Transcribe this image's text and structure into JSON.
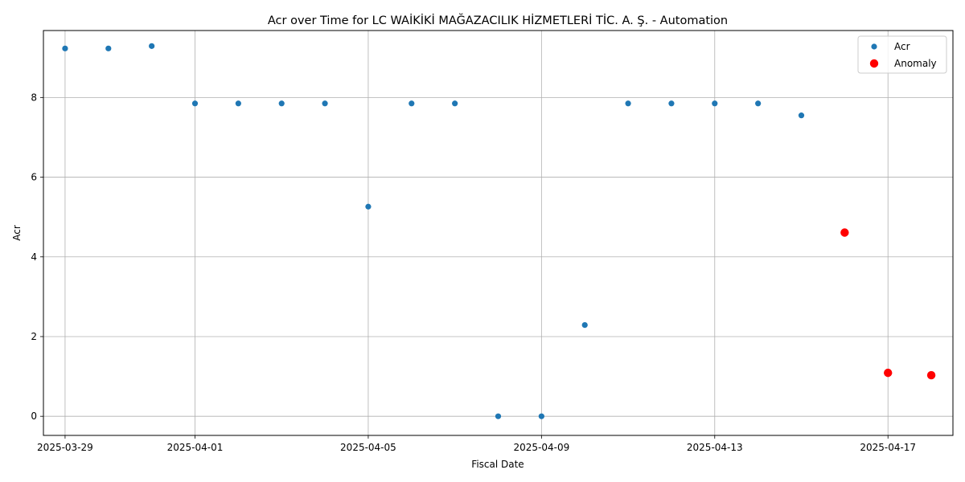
{
  "chart_data": {
    "type": "scatter",
    "title": "Acr over Time for LC WAİKİKİ MAĞAZACILIK HİZMETLERİ TİC. A. Ş. - Automation",
    "xlabel": "Fiscal Date",
    "ylabel": "Acr",
    "xlim": [
      "2025-03-28T12:00",
      "2025-04-18T12:00"
    ],
    "ylim": [
      -0.48,
      9.68
    ],
    "x_ticks": [
      "2025-03-29",
      "2025-04-01",
      "2025-04-05",
      "2025-04-09",
      "2025-04-13",
      "2025-04-17"
    ],
    "y_ticks": [
      0,
      2,
      4,
      6,
      8
    ],
    "grid": true,
    "legend_position": "upper right",
    "series": [
      {
        "name": "Acr",
        "color": "#1f77b4",
        "marker": "circle-small",
        "points": [
          {
            "x": "2025-03-29",
            "y": 9.23
          },
          {
            "x": "2025-03-30",
            "y": 9.23
          },
          {
            "x": "2025-03-31",
            "y": 9.29
          },
          {
            "x": "2025-04-01",
            "y": 7.85
          },
          {
            "x": "2025-04-02",
            "y": 7.85
          },
          {
            "x": "2025-04-03",
            "y": 7.85
          },
          {
            "x": "2025-04-04",
            "y": 7.85
          },
          {
            "x": "2025-04-05",
            "y": 5.26
          },
          {
            "x": "2025-04-06",
            "y": 7.85
          },
          {
            "x": "2025-04-07",
            "y": 7.85
          },
          {
            "x": "2025-04-08",
            "y": 0.0
          },
          {
            "x": "2025-04-09",
            "y": 0.0
          },
          {
            "x": "2025-04-10",
            "y": 2.29
          },
          {
            "x": "2025-04-11",
            "y": 7.85
          },
          {
            "x": "2025-04-12",
            "y": 7.85
          },
          {
            "x": "2025-04-13",
            "y": 7.85
          },
          {
            "x": "2025-04-14",
            "y": 7.85
          },
          {
            "x": "2025-04-15",
            "y": 7.55
          }
        ]
      },
      {
        "name": "Anomaly",
        "color": "#ff0000",
        "marker": "circle-large",
        "points": [
          {
            "x": "2025-04-16",
            "y": 4.61
          },
          {
            "x": "2025-04-17",
            "y": 1.09
          },
          {
            "x": "2025-04-18",
            "y": 1.03
          }
        ]
      }
    ]
  }
}
